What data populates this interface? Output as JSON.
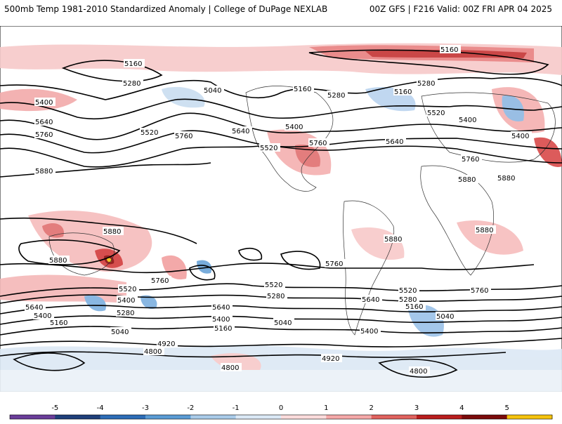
{
  "header": {
    "title": "500mb Temp 1981-2010 Standardized Anomaly | College of DuPage NEXLAB",
    "run_info": "00Z GFS | F216 Valid: 00Z FRI APR 04 2025"
  },
  "contour_labels": [
    "5160",
    "5280",
    "5400",
    "5640",
    "5760",
    "5520",
    "5880",
    "5040",
    "4920",
    "4800"
  ],
  "colorbar": {
    "ticks": [
      "-5",
      "-4",
      "-3",
      "-2",
      "-1",
      "0",
      "1",
      "2",
      "3",
      "4",
      "5"
    ],
    "colors": [
      "#6a3d9a",
      "#1f3f7a",
      "#2c6cb6",
      "#5a9bd4",
      "#a9cbe9",
      "#dbe9f6",
      "#fbdcdc",
      "#f4a8a8",
      "#e0625e",
      "#b81d1d",
      "#7a0a0a",
      "#f4c20d"
    ]
  }
}
